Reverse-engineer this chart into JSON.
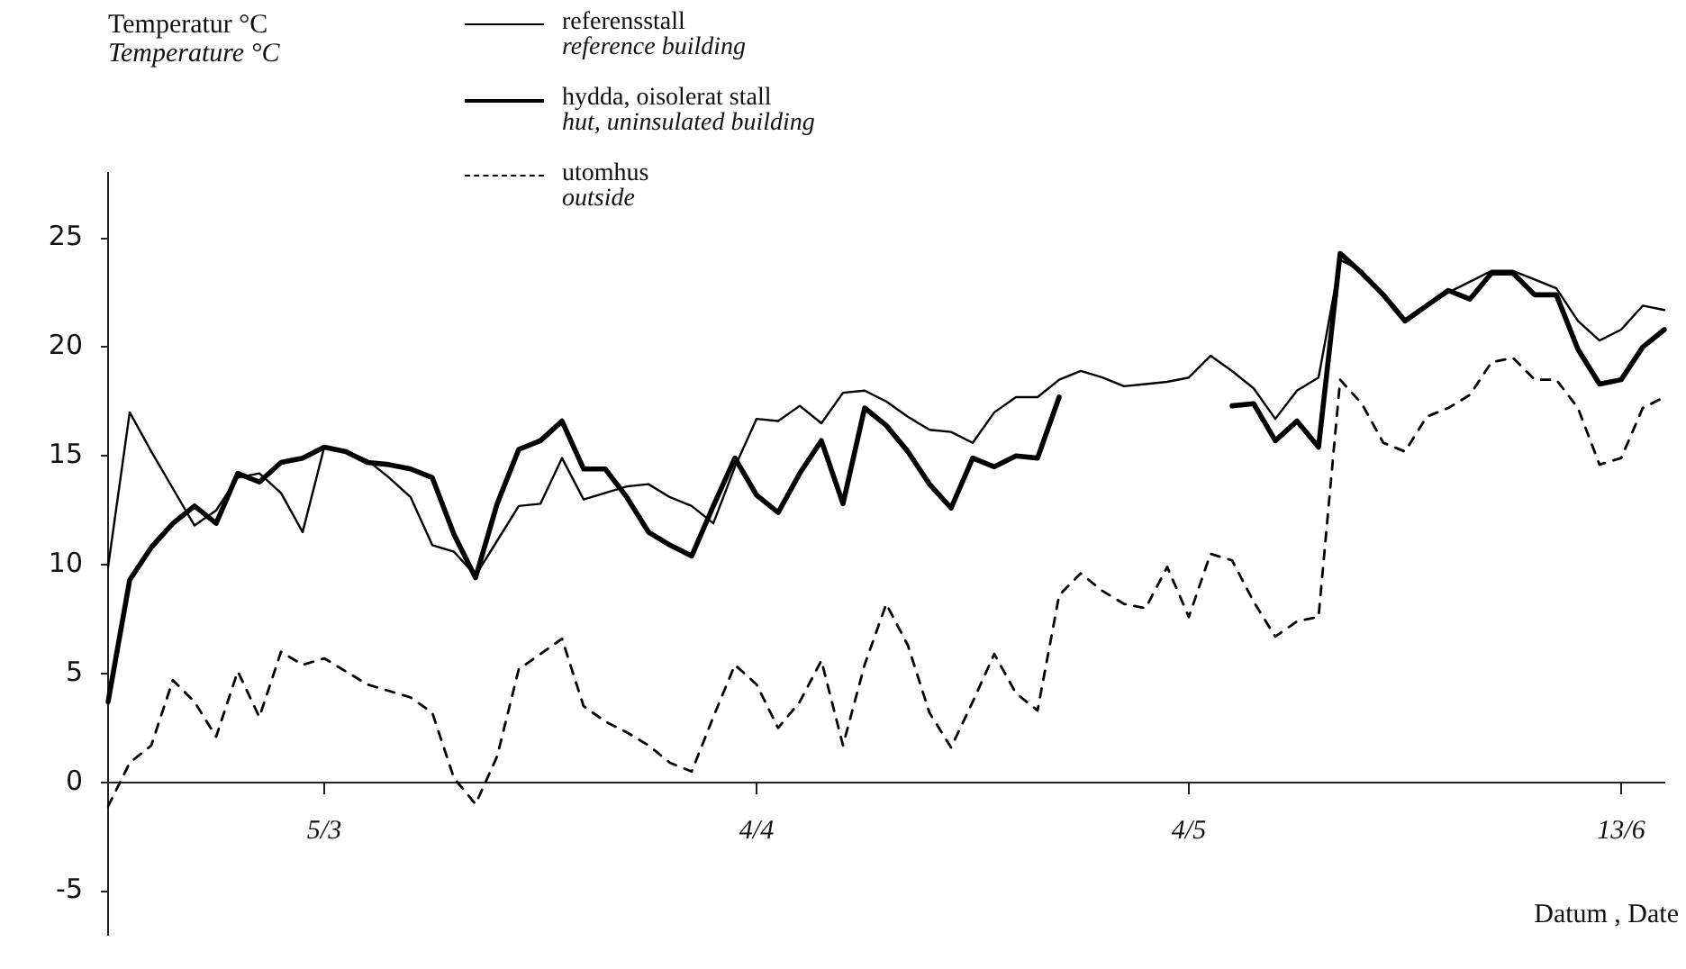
{
  "chart_data": {
    "type": "line",
    "ylabel": "Temperatur °C\nTemperature °C",
    "xlabel": "Datum , Date",
    "legend": "top",
    "ylim": [
      -7,
      28
    ],
    "categories": [
      null,
      null,
      null,
      null,
      null,
      null,
      null,
      null,
      null,
      null,
      "5/3",
      null,
      null,
      null,
      null,
      null,
      null,
      null,
      null,
      null,
      null,
      null,
      null,
      null,
      null,
      null,
      null,
      null,
      null,
      null,
      "4/4",
      null,
      null,
      null,
      null,
      null,
      null,
      null,
      null,
      null,
      null,
      null,
      null,
      null,
      null,
      null,
      null,
      null,
      null,
      null,
      "4/5",
      null,
      null,
      null,
      null,
      null,
      null,
      null,
      null,
      null,
      null,
      null,
      null,
      null,
      null,
      null,
      null,
      null,
      null,
      null,
      "13/6",
      null,
      null
    ],
    "yticks": [
      -5,
      0,
      5,
      10,
      15,
      20,
      25
    ],
    "series": [
      {
        "name": "referensstall\nreference building",
        "color": "#000000",
        "line_style": "solid",
        "values": [
          9.9,
          17.0,
          15.2,
          13.5,
          11.8,
          12.5,
          14.0,
          14.2,
          13.3,
          11.5,
          15.4,
          15.2,
          14.8,
          14.0,
          13.1,
          10.9,
          10.6,
          9.5,
          11.1,
          12.7,
          12.8,
          14.9,
          13.0,
          13.3,
          13.6,
          13.7,
          13.1,
          12.7,
          11.9,
          14.5,
          16.7,
          16.6,
          17.3,
          16.5,
          17.9,
          18.0,
          17.5,
          16.8,
          16.2,
          16.1,
          15.6,
          17.0,
          17.7,
          17.7,
          18.5,
          18.9,
          18.6,
          18.2,
          18.3,
          18.4,
          18.6,
          19.6,
          18.9,
          18.1,
          16.7,
          18.0,
          18.6,
          24.0,
          23.5,
          22.3,
          21.2,
          21.9,
          22.5,
          23.0,
          23.5,
          23.5,
          23.1,
          22.7,
          21.2,
          20.3,
          20.8,
          21.9,
          21.7
        ]
      },
      {
        "name": "hydda, oisolerat stall\nhut, uninsulated building",
        "color": "#000000",
        "line_style": "solid",
        "values": [
          3.7,
          9.3,
          10.8,
          11.9,
          12.7,
          11.9,
          14.2,
          13.8,
          14.7,
          14.9,
          15.4,
          15.2,
          14.7,
          14.6,
          14.4,
          14.0,
          11.4,
          9.4,
          12.8,
          15.3,
          15.7,
          16.6,
          14.4,
          14.4,
          13.1,
          11.5,
          10.9,
          10.4,
          12.7,
          14.9,
          13.2,
          12.4,
          14.2,
          15.7,
          12.8,
          17.2,
          16.4,
          15.2,
          13.7,
          12.6,
          14.9,
          14.5,
          15.0,
          14.9,
          17.7,
          null,
          null,
          null,
          null,
          null,
          null,
          null,
          17.3,
          17.4,
          15.7,
          16.6,
          15.4,
          24.3,
          23.4,
          22.4,
          21.2,
          21.9,
          22.6,
          22.2,
          23.4,
          23.4,
          22.4,
          22.4,
          19.9,
          18.3,
          18.5,
          20.0,
          20.8
        ]
      },
      {
        "name": "utomhus\noutside",
        "color": "#000000",
        "line_style": "dashed",
        "values": [
          -1.1,
          0.9,
          1.7,
          4.7,
          3.7,
          2.1,
          5.1,
          3.0,
          6.0,
          5.4,
          5.7,
          5.1,
          4.5,
          4.2,
          3.9,
          3.2,
          0.2,
          -1.0,
          1.2,
          5.2,
          5.9,
          6.6,
          3.5,
          2.8,
          2.3,
          1.7,
          0.9,
          0.5,
          3.0,
          5.4,
          4.5,
          2.5,
          3.7,
          5.6,
          1.7,
          5.4,
          8.2,
          6.3,
          3.2,
          1.6,
          3.7,
          5.9,
          4.1,
          3.3,
          8.6,
          9.6,
          8.8,
          8.2,
          8.0,
          9.9,
          7.6,
          10.5,
          10.2,
          8.3,
          6.7,
          7.4,
          7.6,
          18.5,
          17.4,
          15.6,
          15.2,
          16.8,
          17.2,
          17.8,
          19.3,
          19.5,
          18.5,
          18.5,
          17.2,
          14.6,
          14.9,
          17.2,
          17.7
        ]
      }
    ]
  }
}
